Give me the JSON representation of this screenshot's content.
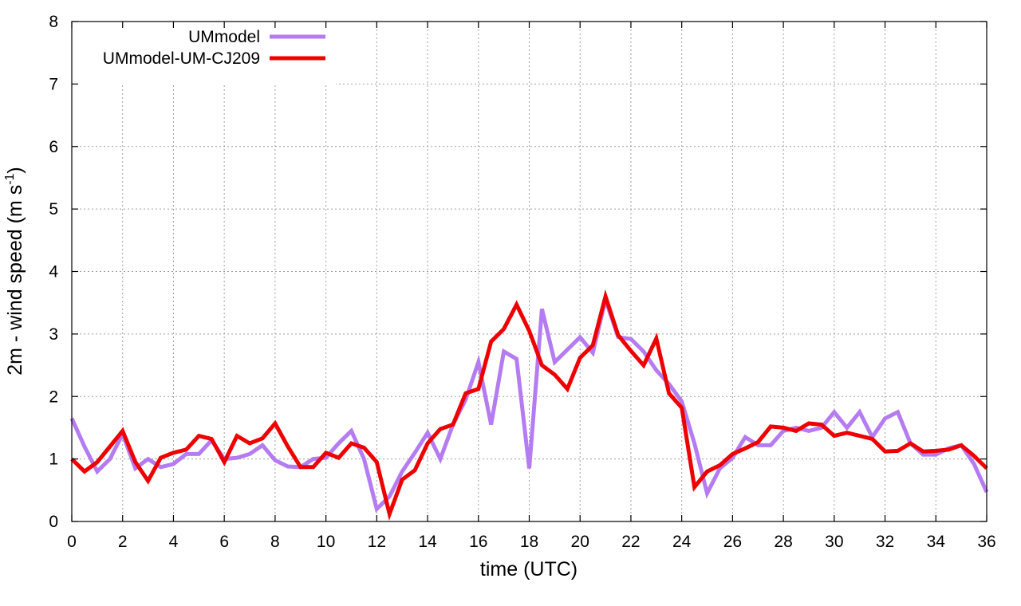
{
  "chart_data": {
    "type": "line",
    "xlabel": "time (UTC)",
    "ylabel": "2m - wind speed  (m s",
    "ylabel_sup": "-1",
    "ylabel_end": ")",
    "xlim": [
      0,
      36
    ],
    "ylim": [
      0,
      8
    ],
    "xticks": [
      0,
      2,
      4,
      6,
      8,
      10,
      12,
      14,
      16,
      18,
      20,
      22,
      24,
      26,
      28,
      30,
      32,
      34,
      36
    ],
    "yticks": [
      0,
      1,
      2,
      3,
      4,
      5,
      6,
      7,
      8
    ],
    "grid": true,
    "legend_position": "top-left",
    "x": [
      0,
      0.5,
      1,
      1.5,
      2,
      2.5,
      3,
      3.5,
      4,
      4.5,
      5,
      5.5,
      6,
      6.5,
      7,
      7.5,
      8,
      8.5,
      9,
      9.5,
      10,
      10.5,
      11,
      11.5,
      12,
      12.5,
      13,
      13.5,
      14,
      14.5,
      15,
      15.5,
      16,
      16.5,
      17,
      17.5,
      18,
      18.5,
      19,
      19.5,
      20,
      20.5,
      21,
      21.5,
      22,
      22.5,
      23,
      23.5,
      24,
      24.5,
      25,
      25.5,
      26,
      26.5,
      27,
      27.5,
      28,
      28.5,
      29,
      29.5,
      30,
      30.5,
      31,
      31.5,
      32,
      32.5,
      33,
      33.5,
      34,
      34.5,
      35,
      35.5,
      36
    ],
    "series": [
      {
        "name": "UMmodel",
        "color": "#b57cf2",
        "values": [
          1.65,
          1.2,
          0.8,
          1.0,
          1.4,
          0.85,
          1.0,
          0.87,
          0.92,
          1.08,
          1.08,
          1.3,
          1.0,
          1.02,
          1.08,
          1.22,
          0.98,
          0.88,
          0.87,
          1.0,
          1.02,
          1.25,
          1.45,
          1.0,
          0.2,
          0.4,
          0.8,
          1.1,
          1.42,
          1.0,
          1.55,
          1.95,
          2.55,
          1.55,
          2.72,
          2.6,
          0.85,
          3.4,
          2.55,
          2.75,
          2.95,
          2.7,
          3.55,
          2.95,
          2.92,
          2.72,
          2.42,
          2.2,
          1.92,
          1.25,
          0.45,
          0.85,
          1.02,
          1.35,
          1.22,
          1.22,
          1.45,
          1.5,
          1.45,
          1.5,
          1.75,
          1.5,
          1.75,
          1.35,
          1.65,
          1.75,
          1.25,
          1.07,
          1.07,
          1.17,
          1.22,
          0.92,
          0.47
        ]
      },
      {
        "name": "UMmodel-UM-CJ209",
        "color": "#ee0000",
        "values": [
          1.0,
          0.8,
          0.95,
          1.2,
          1.45,
          0.95,
          0.65,
          1.02,
          1.1,
          1.15,
          1.37,
          1.32,
          0.95,
          1.37,
          1.25,
          1.33,
          1.57,
          1.2,
          0.87,
          0.87,
          1.1,
          1.02,
          1.25,
          1.18,
          0.95,
          0.12,
          0.67,
          0.82,
          1.25,
          1.48,
          1.55,
          2.05,
          2.12,
          2.88,
          3.08,
          3.47,
          3.05,
          2.5,
          2.35,
          2.12,
          2.62,
          2.82,
          3.6,
          2.98,
          2.73,
          2.5,
          2.93,
          2.05,
          1.82,
          0.55,
          0.8,
          0.9,
          1.08,
          1.17,
          1.27,
          1.52,
          1.5,
          1.45,
          1.57,
          1.55,
          1.37,
          1.42,
          1.37,
          1.32,
          1.12,
          1.13,
          1.25,
          1.12,
          1.13,
          1.15,
          1.22,
          1.05,
          0.85
        ]
      }
    ]
  }
}
